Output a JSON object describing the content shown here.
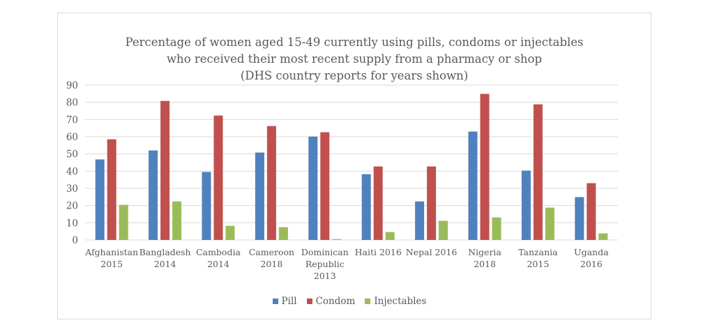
{
  "chart_data": {
    "type": "bar",
    "title": [
      "Percentage of women aged 15-49 currently using pills, condoms or injectables",
      "who received their most recent supply from a pharmacy or shop",
      "(DHS country reports for years shown)"
    ],
    "categories": [
      [
        "Afghanistan",
        "2015"
      ],
      [
        "Bangladesh",
        "2014"
      ],
      [
        "Cambodia",
        "2014"
      ],
      [
        "Cameroon",
        "2018"
      ],
      [
        "Dominican",
        "Republic",
        "2013"
      ],
      [
        "Haiti 2016"
      ],
      [
        "Nepal 2016"
      ],
      [
        "Nigeria",
        "2018"
      ],
      [
        "Tanzania",
        "2015"
      ],
      [
        "Uganda",
        "2016"
      ]
    ],
    "series": [
      {
        "name": "Pill",
        "color": "#4f81bd",
        "values": [
          46.8,
          52.0,
          39.5,
          50.8,
          60.1,
          38.2,
          22.4,
          63.0,
          40.3,
          24.9
        ]
      },
      {
        "name": "Condom",
        "color": "#c0504d",
        "values": [
          58.5,
          80.8,
          72.3,
          66.2,
          62.6,
          42.7,
          42.7,
          84.9,
          78.8,
          33.0
        ]
      },
      {
        "name": "Injectables",
        "color": "#9bbb59",
        "values": [
          20.4,
          22.4,
          8.2,
          7.4,
          0.5,
          4.6,
          11.1,
          13.1,
          18.8,
          3.8
        ]
      }
    ],
    "ylim": [
      0,
      90
    ],
    "yticks": [
      "0",
      "10",
      "20",
      "30",
      "40",
      "50",
      "60",
      "70",
      "80",
      "90"
    ],
    "grid": true,
    "legend": "bottom",
    "xlabel": "",
    "ylabel": ""
  }
}
